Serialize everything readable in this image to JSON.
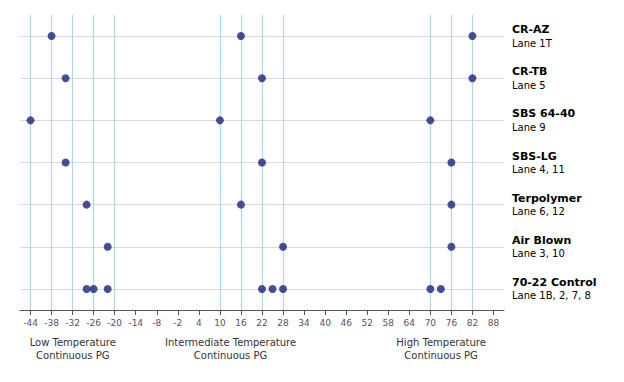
{
  "chart_data": {
    "type": "scatter",
    "categories": [
      "CR-AZ",
      "CR-TB",
      "SBS 64-40",
      "SBS-LG",
      "Terpolymer",
      "Air Blown",
      "70-22 Control"
    ],
    "lanes": [
      "Lane 1T",
      "Lane 5",
      "Lane 9",
      "Lane 4, 11",
      "Lane 6, 12",
      "Lane 3, 10",
      "Lane 1B, 2, 7, 8"
    ],
    "series": [
      {
        "values": [
          -38,
          -34,
          -44,
          -34,
          -28,
          -22,
          -22
        ]
      },
      {
        "values": [
          16,
          22,
          10,
          22,
          16,
          28,
          22
        ]
      },
      {
        "values": [
          82,
          82,
          70,
          76,
          76,
          76,
          70
        ]
      },
      {
        "values": [
          null,
          null,
          null,
          null,
          null,
          null,
          -26
        ]
      },
      {
        "values": [
          null,
          null,
          null,
          null,
          null,
          null,
          25
        ]
      },
      {
        "values": [
          null,
          null,
          null,
          null,
          null,
          null,
          73
        ]
      },
      {
        "values": [
          null,
          null,
          null,
          null,
          null,
          null,
          -28
        ]
      },
      {
        "values": [
          null,
          null,
          null,
          null,
          null,
          null,
          28
        ]
      }
    ],
    "color": "#1a237e",
    "xlim": [
      -47,
      91
    ],
    "xticks": [
      -44,
      -38,
      -32,
      -26,
      -20,
      -14,
      -8,
      -2,
      4,
      10,
      16,
      22,
      28,
      34,
      40,
      46,
      52,
      58,
      64,
      70,
      76,
      82,
      88
    ],
    "vlines": {
      "values": [
        -44,
        -38,
        -32,
        -26,
        -20,
        10,
        16,
        22,
        28,
        70,
        76,
        82
      ],
      "color": "#add8e6"
    },
    "annotations": [
      "Low Temperature\nContinuous PG",
      "Intermediate Temperature\nContinuous PG",
      "High Temperature\nContinuous PG"
    ],
    "grid": true
  }
}
